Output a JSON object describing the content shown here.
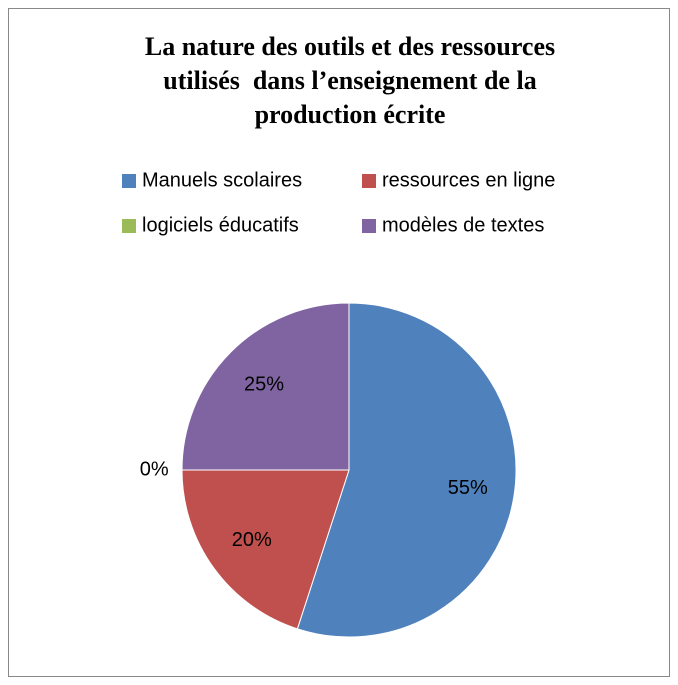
{
  "chart_data": {
    "type": "pie",
    "title": "La nature des outils et des ressources utilisés  dans l’enseignement de la production écrite",
    "categories": [
      "Manuels scolaires",
      "ressources en ligne",
      "logiciels éducatifs",
      "modèles de textes"
    ],
    "values": [
      55,
      20,
      0,
      25
    ],
    "value_labels": [
      "55%",
      "20%",
      "0%",
      "25%"
    ],
    "colors": [
      "#4f81bd",
      "#c0504d",
      "#9bbb59",
      "#8064a2"
    ],
    "legend": "top"
  }
}
